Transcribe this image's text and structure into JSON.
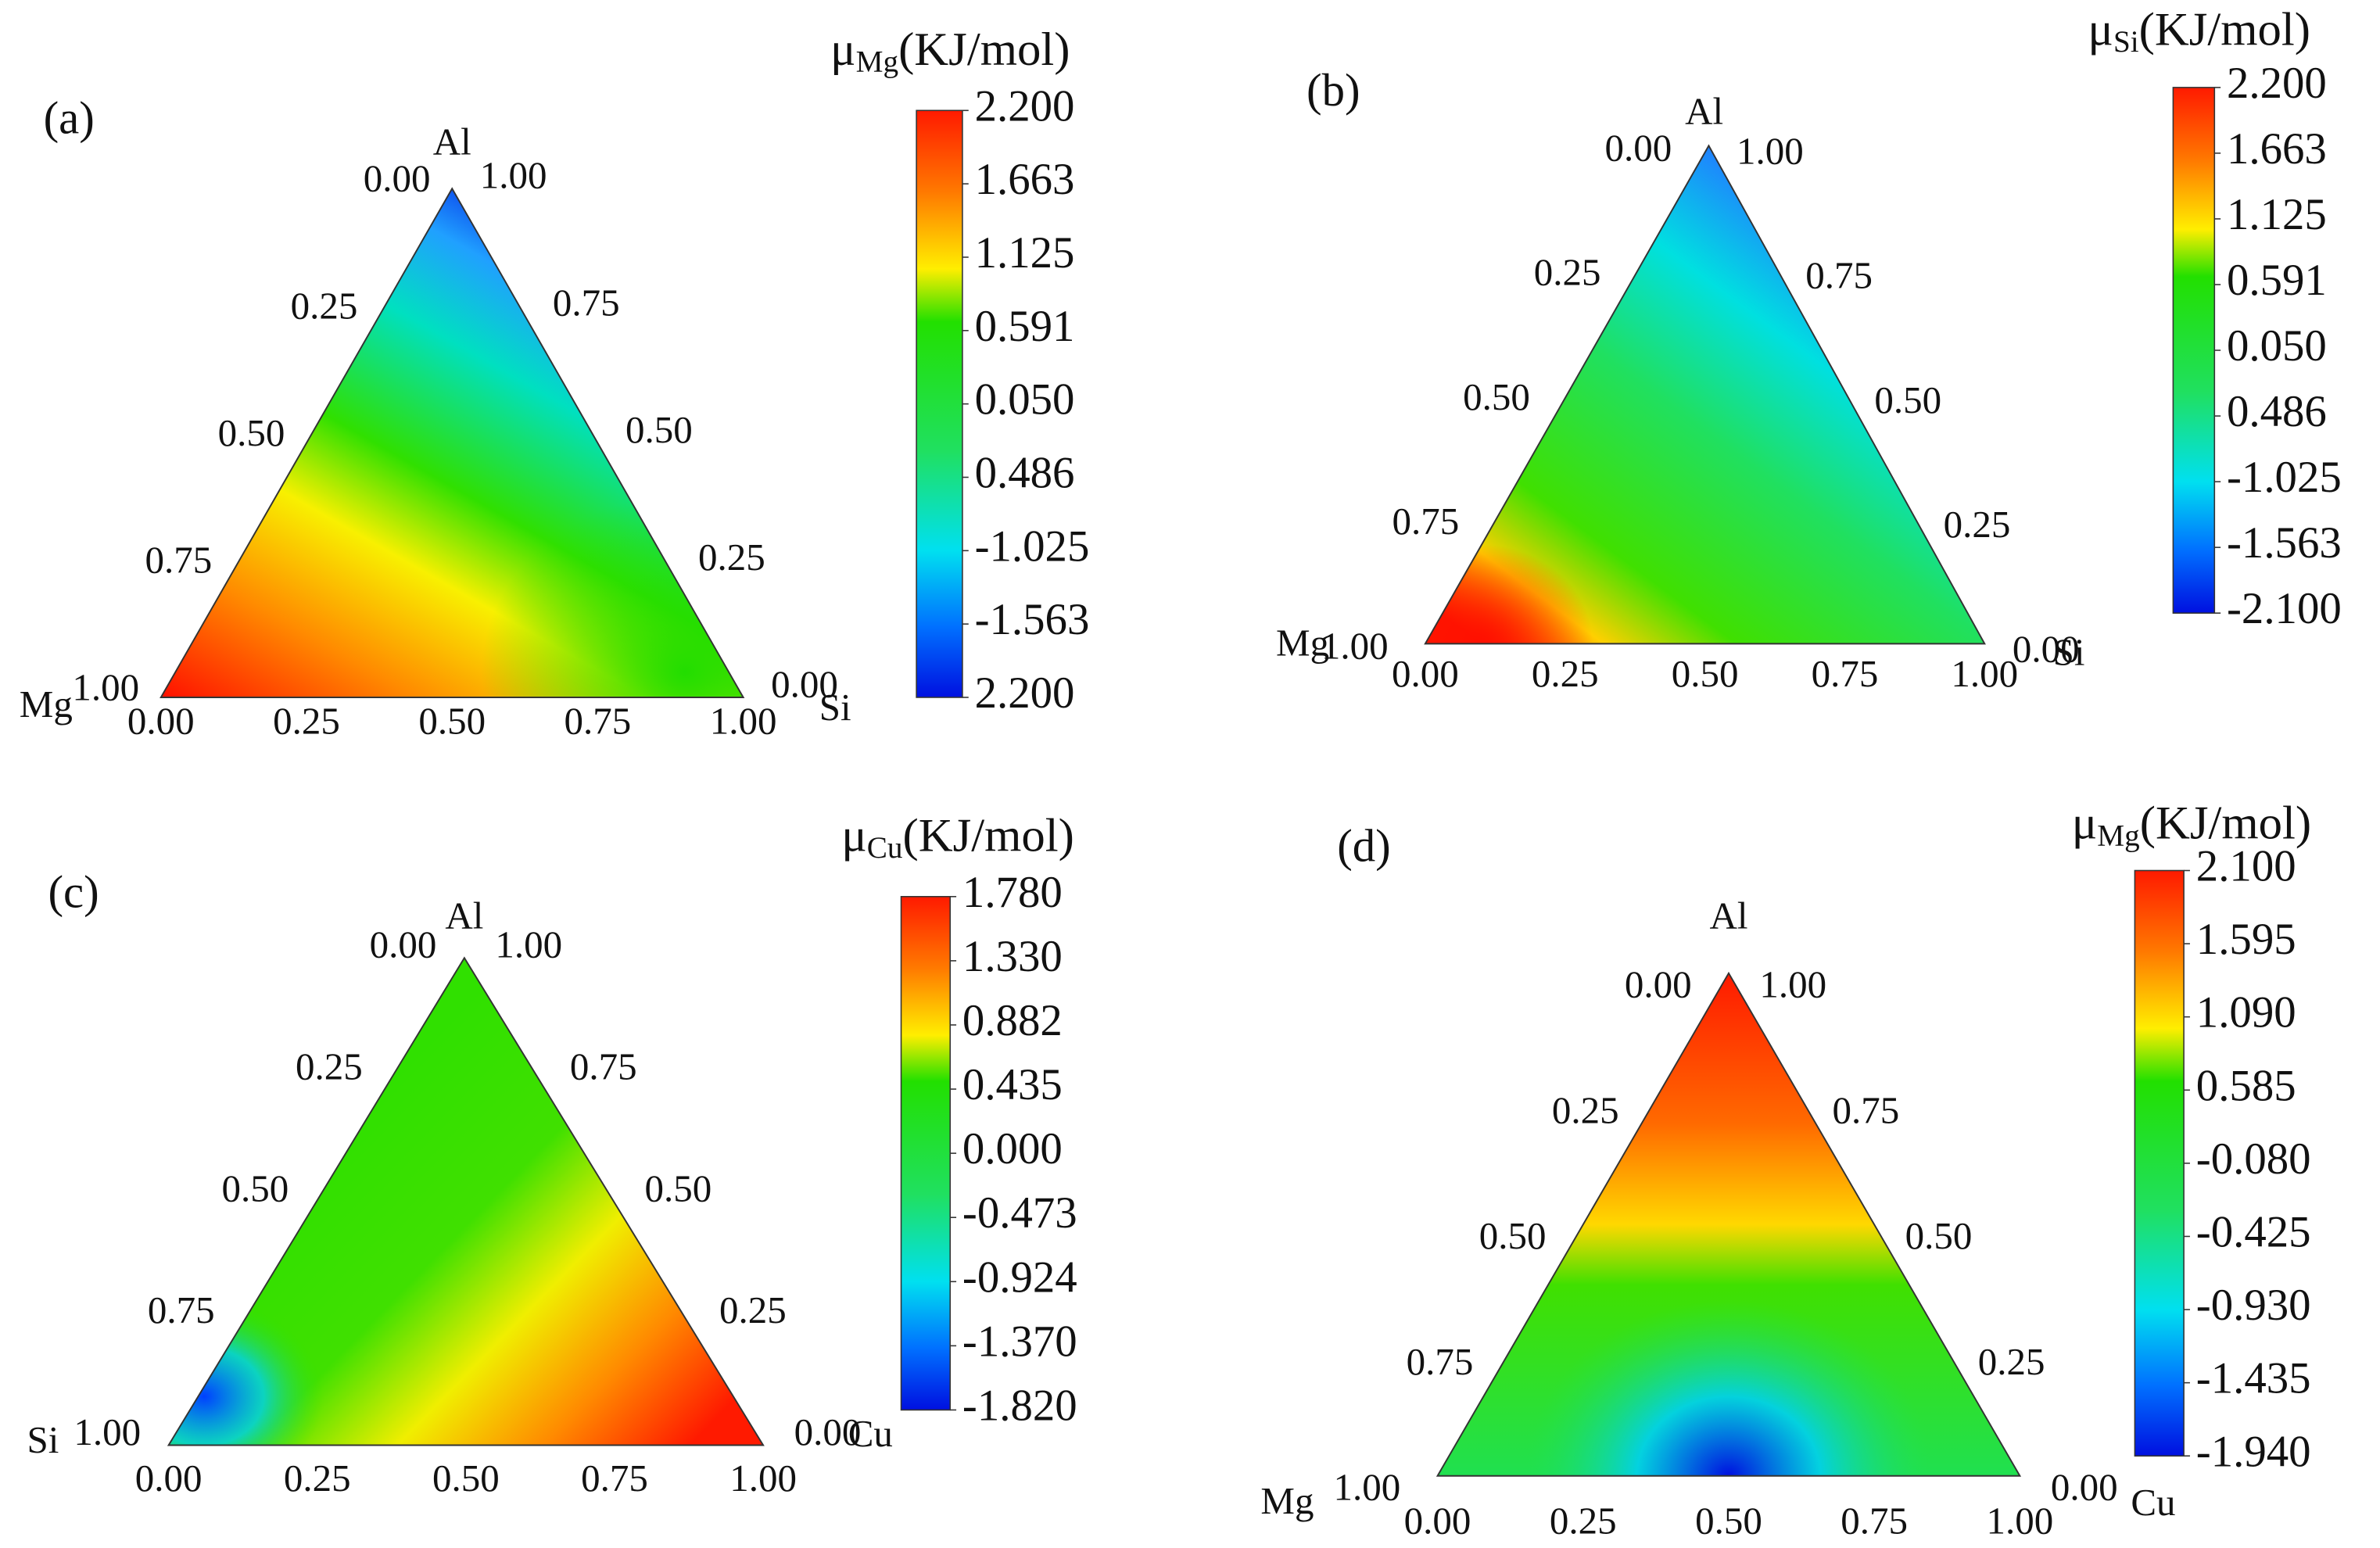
{
  "chart_data": [
    {
      "type": "ternary",
      "panel_label": "(a)",
      "vertices": [
        "Al",
        "Mg",
        "Si"
      ],
      "colorbar": {
        "symbol": "μ",
        "subscript": "Mg",
        "unit": "(KJ/mol)",
        "ticks": [
          {
            "value": 2.2,
            "label": "2.200"
          },
          1.663,
          1.125,
          0.591,
          {
            "value": 0.05,
            "label": "0.050"
          },
          0.486,
          -1.025,
          -1.563,
          {
            "value": 2.2,
            "label": "2.200"
          }
        ]
      },
      "left_ticks": [
        {
          "value": 0,
          "label": "0.00"
        },
        0.25,
        {
          "value": 0.5,
          "label": "0.50"
        },
        0.75,
        {
          "value": 1,
          "label": "1.00"
        }
      ],
      "right_ticks": [
        {
          "value": 0,
          "label": "0.00"
        },
        0.25,
        {
          "value": 0.5,
          "label": "0.50"
        },
        0.75,
        {
          "value": 1,
          "label": "1.00"
        }
      ],
      "bottom_ticks": [
        {
          "value": 0,
          "label": "0.00"
        },
        0.25,
        {
          "value": 0.5,
          "label": "0.50"
        },
        0.75,
        {
          "value": 1,
          "label": "1.00"
        }
      ]
    },
    {
      "type": "ternary",
      "panel_label": "(b)",
      "vertices": [
        "Al",
        "Mg",
        "Si"
      ],
      "colorbar": {
        "symbol": "μ",
        "subscript": "Si",
        "unit": "(KJ/mol)",
        "ticks": [
          {
            "value": 2.2,
            "label": "2.200"
          },
          1.663,
          1.125,
          0.591,
          {
            "value": 0.05,
            "label": "0.050"
          },
          0.486,
          -1.025,
          -1.563,
          {
            "value": -2.1,
            "label": "-2.100"
          }
        ]
      },
      "left_ticks": [
        {
          "value": 0,
          "label": "0.00"
        },
        0.25,
        {
          "value": 0.5,
          "label": "0.50"
        },
        0.75,
        {
          "value": 1,
          "label": "1.00"
        }
      ],
      "right_ticks": [
        {
          "value": 0,
          "label": "0.00"
        },
        0.25,
        {
          "value": 0.5,
          "label": "0.50"
        },
        0.75,
        {
          "value": 1,
          "label": "1.00"
        }
      ],
      "bottom_ticks": [
        {
          "value": 0,
          "label": "0.00"
        },
        0.25,
        {
          "value": 0.5,
          "label": "0.50"
        },
        0.75,
        {
          "value": 1,
          "label": "1.00"
        }
      ]
    },
    {
      "type": "ternary",
      "panel_label": "(c)",
      "vertices": [
        "Al",
        "Si",
        "Cu"
      ],
      "colorbar": {
        "symbol": "μ",
        "subscript": "Cu",
        "unit": "(KJ/mol)",
        "ticks": [
          {
            "value": 1.78,
            "label": "1.780"
          },
          {
            "value": 1.33,
            "label": "1.330"
          },
          0.882,
          0.435,
          {
            "value": 0,
            "label": "0.000"
          },
          -0.473,
          -0.924,
          {
            "value": -1.37,
            "label": "-1.370"
          },
          {
            "value": -1.82,
            "label": "-1.820"
          }
        ]
      },
      "left_ticks": [
        {
          "value": 0,
          "label": "0.00"
        },
        0.25,
        {
          "value": 0.5,
          "label": "0.50"
        },
        0.75,
        {
          "value": 1,
          "label": "1.00"
        }
      ],
      "right_ticks": [
        {
          "value": 0,
          "label": "0.00"
        },
        0.25,
        {
          "value": 0.5,
          "label": "0.50"
        },
        0.75,
        {
          "value": 1,
          "label": "1.00"
        }
      ],
      "bottom_ticks": [
        {
          "value": 0,
          "label": "0.00"
        },
        0.25,
        {
          "value": 0.5,
          "label": "0.50"
        },
        0.75,
        {
          "value": 1,
          "label": "1.00"
        }
      ]
    },
    {
      "type": "ternary",
      "panel_label": "(d)",
      "vertices": [
        "Al",
        "Mg",
        "Cu"
      ],
      "colorbar": {
        "symbol": "μ",
        "subscript": "Mg",
        "unit": "(KJ/mol)",
        "ticks": [
          {
            "value": 2.1,
            "label": "2.100"
          },
          1.595,
          {
            "value": 1.09,
            "label": "1.090"
          },
          0.585,
          {
            "value": -0.08,
            "label": "-0.080"
          },
          -0.425,
          {
            "value": -0.93,
            "label": "-0.930"
          },
          -1.435,
          {
            "value": -1.94,
            "label": "-1.940"
          }
        ]
      },
      "left_ticks": [
        {
          "value": 0,
          "label": "0.00"
        },
        0.25,
        {
          "value": 0.5,
          "label": "0.50"
        },
        0.75,
        {
          "value": 1,
          "label": "1.00"
        }
      ],
      "right_ticks": [
        {
          "value": 0,
          "label": "0.00"
        },
        0.25,
        {
          "value": 0.5,
          "label": "0.50"
        },
        0.75,
        {
          "value": 1,
          "label": "1.00"
        }
      ],
      "bottom_ticks": [
        {
          "value": 0,
          "label": "0.00"
        },
        0.25,
        {
          "value": 0.5,
          "label": "0.50"
        },
        0.75,
        {
          "value": 1,
          "label": "1.00"
        }
      ]
    }
  ]
}
